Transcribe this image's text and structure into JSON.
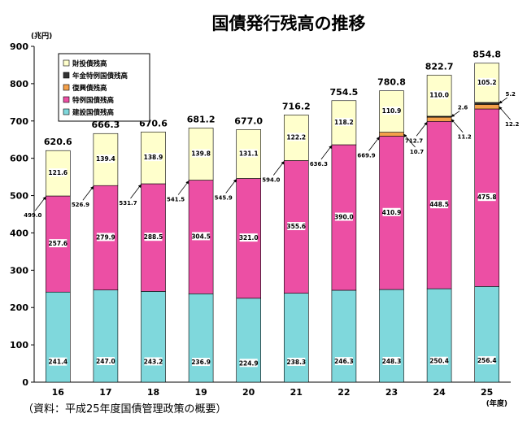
{
  "chart_data": {
    "type": "bar",
    "stacked": true,
    "title": "国債発行残高の推移",
    "ylabel": "(兆円)",
    "xlabel": "(年度)",
    "source": "（資料：平成25年度国債管理政策の概要）",
    "categories": [
      "16",
      "17",
      "18",
      "19",
      "20",
      "21",
      "22",
      "23",
      "24",
      "25"
    ],
    "ylim": [
      0,
      900
    ],
    "yticks": [
      0,
      100,
      200,
      300,
      400,
      500,
      600,
      700,
      800,
      900
    ],
    "grid": false,
    "legend_position": "top-left",
    "series": [
      {
        "name": "建設国債残高",
        "color": "#7fd8dc",
        "values": [
          241.4,
          247.0,
          243.2,
          236.9,
          224.9,
          238.3,
          246.3,
          248.3,
          250.4,
          256.4
        ],
        "labels": [
          "241.4",
          "247.0",
          "243.2",
          "236.9",
          "224.9",
          "238.3",
          "246.3",
          "248.3",
          "250.4",
          "256.4"
        ]
      },
      {
        "name": "特例国債残高",
        "color": "#ec4fa4",
        "values": [
          257.6,
          279.9,
          288.5,
          304.5,
          321.0,
          355.6,
          390.0,
          410.9,
          448.5,
          475.8
        ],
        "labels": [
          "257.6",
          "279.9",
          "288.5",
          "304.5",
          "321.0",
          "355.6",
          "390.0",
          "410.9",
          "448.5",
          "475.8"
        ]
      },
      {
        "name": "復興債残高",
        "color": "#f4a04a",
        "values": [
          0,
          0,
          0,
          0,
          0,
          0,
          0,
          10.7,
          11.2,
          12.2
        ],
        "labels": [
          "",
          "",
          "",
          "",
          "",
          "",
          "",
          "10.7",
          "11.2",
          "12.2"
        ]
      },
      {
        "name": "年金特例国債残高",
        "color": "#333333",
        "values": [
          0,
          0,
          0,
          0,
          0,
          0,
          0,
          0,
          2.6,
          5.2
        ],
        "labels": [
          "",
          "",
          "",
          "",
          "",
          "",
          "",
          "",
          "2.6",
          "5.2"
        ]
      },
      {
        "name": "財投債残高",
        "color": "#ffffcc",
        "values": [
          121.6,
          139.4,
          138.9,
          139.8,
          131.1,
          122.2,
          118.2,
          110.9,
          110.0,
          105.2
        ],
        "labels": [
          "121.6",
          "139.4",
          "138.9",
          "139.8",
          "131.1",
          "122.2",
          "118.2",
          "110.9",
          "110.0",
          "105.2"
        ]
      }
    ],
    "cumulative_labels": [
      "499.0",
      "526.9",
      "531.7",
      "541.5",
      "545.9",
      "594.0",
      "636.3",
      "669.9",
      "712.7",
      ""
    ],
    "totals": [
      "620.6",
      "666.3",
      "670.6",
      "681.2",
      "677.0",
      "716.2",
      "754.5",
      "780.8",
      "822.7",
      "854.8"
    ],
    "legend_order": [
      "財投債残高",
      "年金特例国債残高",
      "復興債残高",
      "特例国債残高",
      "建設国債残高"
    ]
  }
}
